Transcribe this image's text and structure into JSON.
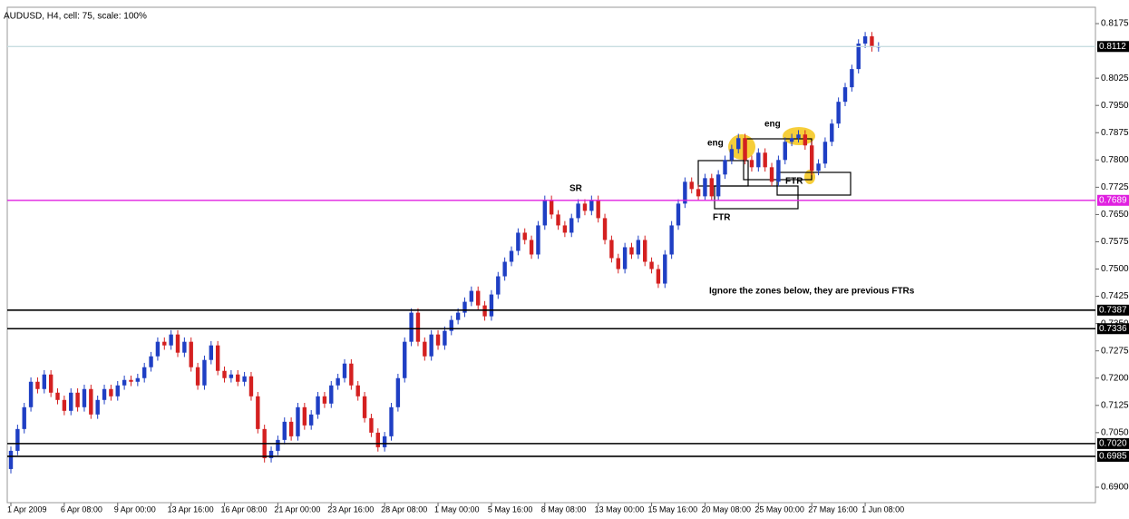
{
  "chart_data": {
    "type": "candlestick",
    "title": "AUDUSD, H4, cell: 75, scale: 100%",
    "up_color": "#1f3fc4",
    "down_color": "#d42020",
    "ylim": [
      0.6855,
      0.8215
    ],
    "yticks": [
      0.8175,
      0.8025,
      {
        "value": 0.795,
        "label": "0.7950"
      },
      0.7875,
      {
        "value": 0.78,
        "label": "0.7800"
      },
      0.7725,
      {
        "value": 0.765,
        "label": "0.7650"
      },
      0.7575,
      {
        "value": 0.75,
        "label": "0.7500"
      },
      0.7425,
      {
        "value": 0.735,
        "label": "0.7350"
      },
      0.7275,
      {
        "value": 0.72,
        "label": "0.7200"
      },
      0.7125,
      {
        "value": 0.705,
        "label": "0.7050"
      },
      {
        "value": 0.69,
        "label": "0.6900"
      }
    ],
    "levels": [
      {
        "value": 0.8112,
        "color": "#c8dde0",
        "box": "#000000"
      },
      {
        "value": 0.7689,
        "color": "#e020e0",
        "box": "#e020e0"
      },
      {
        "value": 0.7387,
        "color": "#000000",
        "box": "#000000"
      },
      {
        "value": 0.7336,
        "color": "#000000",
        "box": "#000000"
      },
      {
        "value": 0.702,
        "label": "0.7020",
        "color": "#000000",
        "box": "#000000"
      },
      {
        "value": 0.6985,
        "color": "#000000",
        "box": "#000000"
      }
    ],
    "annotations": [
      "SR",
      "eng",
      "eng",
      "FTR",
      "FTR",
      "Ignore the zones below, they are previous FTRs"
    ],
    "categories": [
      "1 Apr 2009",
      null,
      null,
      null,
      null,
      null,
      null,
      null,
      "6 Apr 08:00",
      null,
      null,
      null,
      null,
      null,
      null,
      null,
      "9 Apr 00:00",
      null,
      null,
      null,
      null,
      null,
      null,
      null,
      "13 Apr 16:00",
      null,
      null,
      null,
      null,
      null,
      null,
      null,
      "16 Apr 08:00",
      null,
      null,
      null,
      null,
      null,
      null,
      null,
      "21 Apr 00:00",
      null,
      null,
      null,
      null,
      null,
      null,
      null,
      "23 Apr 16:00",
      null,
      null,
      null,
      null,
      null,
      null,
      null,
      "28 Apr 08:00",
      null,
      null,
      null,
      null,
      null,
      null,
      null,
      "1 May 00:00",
      null,
      null,
      null,
      null,
      null,
      null,
      null,
      "5 May 16:00",
      null,
      null,
      null,
      null,
      null,
      null,
      null,
      "8 May 08:00",
      null,
      null,
      null,
      null,
      null,
      null,
      null,
      "13 May 00:00",
      null,
      null,
      null,
      null,
      null,
      null,
      null,
      "15 May 16:00",
      null,
      null,
      null,
      null,
      null,
      null,
      null,
      "20 May 08:00",
      null,
      null,
      null,
      null,
      null,
      null,
      null,
      "25 May 00:00",
      null,
      null,
      null,
      null,
      null,
      null,
      null,
      "27 May 16:00",
      null,
      null,
      null,
      null,
      null,
      null,
      null,
      "1 Jun 08:00",
      null,
      null
    ],
    "ohlc": [
      [
        0.695,
        0.7012,
        0.6938,
        0.7
      ],
      [
        0.7,
        0.7072,
        0.6988,
        0.706
      ],
      [
        0.706,
        0.7132,
        0.7048,
        0.712
      ],
      [
        0.712,
        0.7202,
        0.7108,
        0.719
      ],
      [
        0.719,
        0.7202,
        0.7158,
        0.717
      ],
      [
        0.717,
        0.7222,
        0.7158,
        0.721
      ],
      [
        0.721,
        0.7222,
        0.7148,
        0.716
      ],
      [
        0.716,
        0.7172,
        0.7128,
        0.714
      ],
      [
        0.714,
        0.7152,
        0.7098,
        0.711
      ],
      [
        0.711,
        0.7172,
        0.7098,
        0.716
      ],
      [
        0.716,
        0.7172,
        0.7108,
        0.712
      ],
      [
        0.712,
        0.7182,
        0.7108,
        0.717
      ],
      [
        0.717,
        0.7182,
        0.7088,
        0.71
      ],
      [
        0.71,
        0.7152,
        0.7088,
        0.714
      ],
      [
        0.714,
        0.7182,
        0.7128,
        0.717
      ],
      [
        0.717,
        0.7182,
        0.7138,
        0.715
      ],
      [
        0.715,
        0.7192,
        0.7138,
        0.718
      ],
      [
        0.718,
        0.7207,
        0.7168,
        0.7195
      ],
      [
        0.7195,
        0.7207,
        0.7178,
        0.719
      ],
      [
        0.719,
        0.7212,
        0.7178,
        0.72
      ],
      [
        0.72,
        0.7242,
        0.7188,
        0.723
      ],
      [
        0.723,
        0.7272,
        0.7218,
        0.726
      ],
      [
        0.726,
        0.7312,
        0.7248,
        0.73
      ],
      [
        0.73,
        0.7312,
        0.7278,
        0.729
      ],
      [
        0.729,
        0.7332,
        0.7278,
        0.732
      ],
      [
        0.732,
        0.7332,
        0.7258,
        0.727
      ],
      [
        0.727,
        0.7312,
        0.7258,
        0.73
      ],
      [
        0.73,
        0.7312,
        0.7218,
        0.723
      ],
      [
        0.723,
        0.7242,
        0.7168,
        0.718
      ],
      [
        0.718,
        0.7262,
        0.7168,
        0.725
      ],
      [
        0.725,
        0.7302,
        0.7238,
        0.729
      ],
      [
        0.729,
        0.7302,
        0.7208,
        0.722
      ],
      [
        0.722,
        0.7232,
        0.7188,
        0.72
      ],
      [
        0.72,
        0.7222,
        0.7188,
        0.721
      ],
      [
        0.721,
        0.7222,
        0.7178,
        0.719
      ],
      [
        0.719,
        0.7217,
        0.7178,
        0.7205
      ],
      [
        0.7205,
        0.7217,
        0.7138,
        0.715
      ],
      [
        0.715,
        0.7162,
        0.7048,
        0.706
      ],
      [
        0.706,
        0.7072,
        0.6968,
        0.698
      ],
      [
        0.698,
        0.7012,
        0.6968,
        0.7
      ],
      [
        0.7,
        0.7042,
        0.6988,
        0.703
      ],
      [
        0.703,
        0.7092,
        0.7018,
        0.708
      ],
      [
        0.708,
        0.7092,
        0.7028,
        0.704
      ],
      [
        0.704,
        0.7132,
        0.7028,
        0.712
      ],
      [
        0.712,
        0.7132,
        0.7058,
        0.707
      ],
      [
        0.707,
        0.7112,
        0.7058,
        0.71
      ],
      [
        0.71,
        0.7162,
        0.7088,
        0.715
      ],
      [
        0.715,
        0.7162,
        0.7118,
        0.713
      ],
      [
        0.713,
        0.7192,
        0.7118,
        0.718
      ],
      [
        0.718,
        0.7212,
        0.7168,
        0.72
      ],
      [
        0.72,
        0.7252,
        0.7188,
        0.724
      ],
      [
        0.724,
        0.7252,
        0.7168,
        0.718
      ],
      [
        0.718,
        0.7192,
        0.7138,
        0.715
      ],
      [
        0.715,
        0.7162,
        0.7078,
        0.709
      ],
      [
        0.709,
        0.7102,
        0.7038,
        0.705
      ],
      [
        0.705,
        0.7062,
        0.6998,
        0.701
      ],
      [
        0.701,
        0.7052,
        0.6998,
        0.704
      ],
      [
        0.704,
        0.7132,
        0.7028,
        0.712
      ],
      [
        0.712,
        0.7212,
        0.7108,
        0.72
      ],
      [
        0.72,
        0.7312,
        0.7188,
        0.73
      ],
      [
        0.73,
        0.7392,
        0.7288,
        0.738
      ],
      [
        0.738,
        0.7392,
        0.7288,
        0.73
      ],
      [
        0.73,
        0.7312,
        0.7248,
        0.726
      ],
      [
        0.726,
        0.7332,
        0.7248,
        0.732
      ],
      [
        0.732,
        0.7332,
        0.7278,
        0.729
      ],
      [
        0.729,
        0.7342,
        0.7278,
        0.733
      ],
      [
        0.733,
        0.7372,
        0.7318,
        0.736
      ],
      [
        0.736,
        0.7392,
        0.7348,
        0.738
      ],
      [
        0.738,
        0.7422,
        0.7368,
        0.741
      ],
      [
        0.741,
        0.7452,
        0.7398,
        0.744
      ],
      [
        0.744,
        0.7452,
        0.7388,
        0.74
      ],
      [
        0.74,
        0.7412,
        0.7358,
        0.737
      ],
      [
        0.737,
        0.7442,
        0.7358,
        0.743
      ],
      [
        0.743,
        0.7492,
        0.7418,
        0.748
      ],
      [
        0.748,
        0.7532,
        0.7468,
        0.752
      ],
      [
        0.752,
        0.7562,
        0.7508,
        0.755
      ],
      [
        0.755,
        0.7612,
        0.7538,
        0.76
      ],
      [
        0.76,
        0.7612,
        0.7568,
        0.758
      ],
      [
        0.758,
        0.7592,
        0.7528,
        0.754
      ],
      [
        0.754,
        0.7632,
        0.7528,
        0.762
      ],
      [
        0.762,
        0.7702,
        0.7608,
        0.769
      ],
      [
        0.769,
        0.7702,
        0.7638,
        0.765
      ],
      [
        0.765,
        0.7662,
        0.7608,
        0.762
      ],
      [
        0.762,
        0.7632,
        0.7588,
        0.76
      ],
      [
        0.76,
        0.7652,
        0.7588,
        0.764
      ],
      [
        0.764,
        0.7692,
        0.7628,
        0.768
      ],
      [
        0.768,
        0.7692,
        0.7648,
        0.766
      ],
      [
        0.766,
        0.7702,
        0.7648,
        0.769
      ],
      [
        0.769,
        0.7702,
        0.7628,
        0.764
      ],
      [
        0.764,
        0.7652,
        0.7568,
        0.758
      ],
      [
        0.758,
        0.7592,
        0.7518,
        0.753
      ],
      [
        0.753,
        0.7542,
        0.7488,
        0.75
      ],
      [
        0.75,
        0.7572,
        0.7488,
        0.756
      ],
      [
        0.756,
        0.7572,
        0.7528,
        0.754
      ],
      [
        0.754,
        0.7592,
        0.7528,
        0.758
      ],
      [
        0.758,
        0.7592,
        0.7508,
        0.752
      ],
      [
        0.752,
        0.7532,
        0.7488,
        0.75
      ],
      [
        0.75,
        0.7512,
        0.7448,
        0.746
      ],
      [
        0.746,
        0.7552,
        0.7448,
        0.754
      ],
      [
        0.754,
        0.7632,
        0.7528,
        0.762
      ],
      [
        0.762,
        0.7692,
        0.7608,
        0.768
      ],
      [
        0.768,
        0.7752,
        0.7668,
        0.774
      ],
      [
        0.774,
        0.7752,
        0.7708,
        0.772
      ],
      [
        0.772,
        0.7732,
        0.7688,
        0.77
      ],
      [
        0.77,
        0.7762,
        0.7688,
        0.775
      ],
      [
        0.775,
        0.7762,
        0.7688,
        0.77
      ],
      [
        0.77,
        0.7772,
        0.7688,
        0.776
      ],
      [
        0.776,
        0.7812,
        0.7748,
        0.78
      ],
      [
        0.78,
        0.7842,
        0.7788,
        0.783
      ],
      [
        0.783,
        0.7872,
        0.7818,
        0.786
      ],
      [
        0.786,
        0.7872,
        0.7788,
        0.78
      ],
      [
        0.78,
        0.7812,
        0.7768,
        0.778
      ],
      [
        0.778,
        0.7832,
        0.7768,
        0.782
      ],
      [
        0.782,
        0.7832,
        0.7768,
        0.778
      ],
      [
        0.778,
        0.7792,
        0.7728,
        0.774
      ],
      [
        0.774,
        0.7812,
        0.7728,
        0.78
      ],
      [
        0.78,
        0.7862,
        0.7788,
        0.785
      ],
      [
        0.785,
        0.7872,
        0.7838,
        0.786
      ],
      [
        0.786,
        0.7882,
        0.7848,
        0.787
      ],
      [
        0.787,
        0.7882,
        0.7828,
        0.784
      ],
      [
        0.784,
        0.7852,
        0.7758,
        0.777
      ],
      [
        0.777,
        0.7802,
        0.7758,
        0.779
      ],
      [
        0.779,
        0.7862,
        0.7778,
        0.785
      ],
      [
        0.785,
        0.7912,
        0.7838,
        0.79
      ],
      [
        0.79,
        0.7972,
        0.7888,
        0.796
      ],
      [
        0.796,
        0.8012,
        0.7948,
        0.8
      ],
      [
        0.8,
        0.8062,
        0.7988,
        0.805
      ],
      [
        0.805,
        0.8132,
        0.8038,
        0.812
      ],
      [
        0.812,
        0.8152,
        0.8108,
        0.814
      ],
      [
        0.814,
        0.8152,
        0.8098,
        0.811
      ],
      [
        0.811,
        0.8124,
        0.8098,
        0.8112
      ]
    ]
  }
}
